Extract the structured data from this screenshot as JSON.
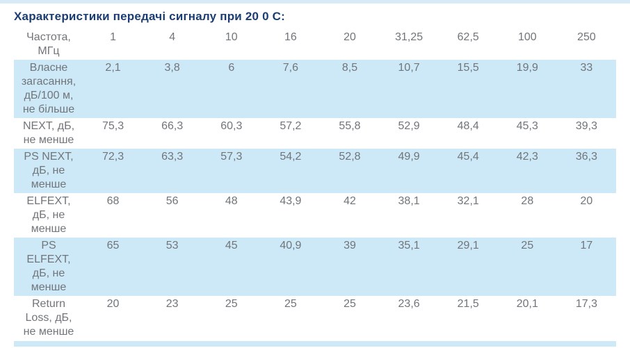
{
  "page": {
    "title": "Характеристики передачі сигналу при 20 0 С:"
  },
  "table": {
    "header": {
      "label": "Частота, МГц",
      "columns": [
        "1",
        "4",
        "10",
        "16",
        "20",
        "31,25",
        "62,5",
        "100",
        "250"
      ]
    },
    "rows": [
      {
        "label": "Власне загасання, дБ/100 м, не більше",
        "highlighted": true,
        "values": [
          "2,1",
          "3,8",
          "6",
          "7,6",
          "8,5",
          "10,7",
          "15,5",
          "19,9",
          "33"
        ]
      },
      {
        "label": "NEXT, дБ, не менше",
        "highlighted": false,
        "values": [
          "75,3",
          "66,3",
          "60,3",
          "57,2",
          "55,8",
          "52,9",
          "48,4",
          "45,3",
          "39,3"
        ]
      },
      {
        "label": "PS NEXT, дБ, не менше",
        "highlighted": true,
        "values": [
          "72,3",
          "63,3",
          "57,3",
          "54,2",
          "52,8",
          "49,9",
          "45,4",
          "42,3",
          "36,3"
        ]
      },
      {
        "label": "ELFEXT, дБ, не менше",
        "highlighted": false,
        "values": [
          "68",
          "56",
          "48",
          "43,9",
          "42",
          "38,1",
          "32,1",
          "28",
          "20"
        ]
      },
      {
        "label": "PS ELFEXT, дБ, не менше",
        "highlighted": true,
        "values": [
          "65",
          "53",
          "45",
          "40,9",
          "39",
          "35,1",
          "29,1",
          "25",
          "17"
        ]
      },
      {
        "label": "Return Loss, дБ, не менше",
        "highlighted": false,
        "values": [
          "20",
          "23",
          "25",
          "25",
          "25",
          "23,6",
          "21,5",
          "20,1",
          "17,3"
        ]
      }
    ]
  },
  "colors": {
    "top_strip": "#d7eaf7",
    "row_highlight": "#cde9f8",
    "title": "#1b3d72",
    "text": "#717579"
  }
}
